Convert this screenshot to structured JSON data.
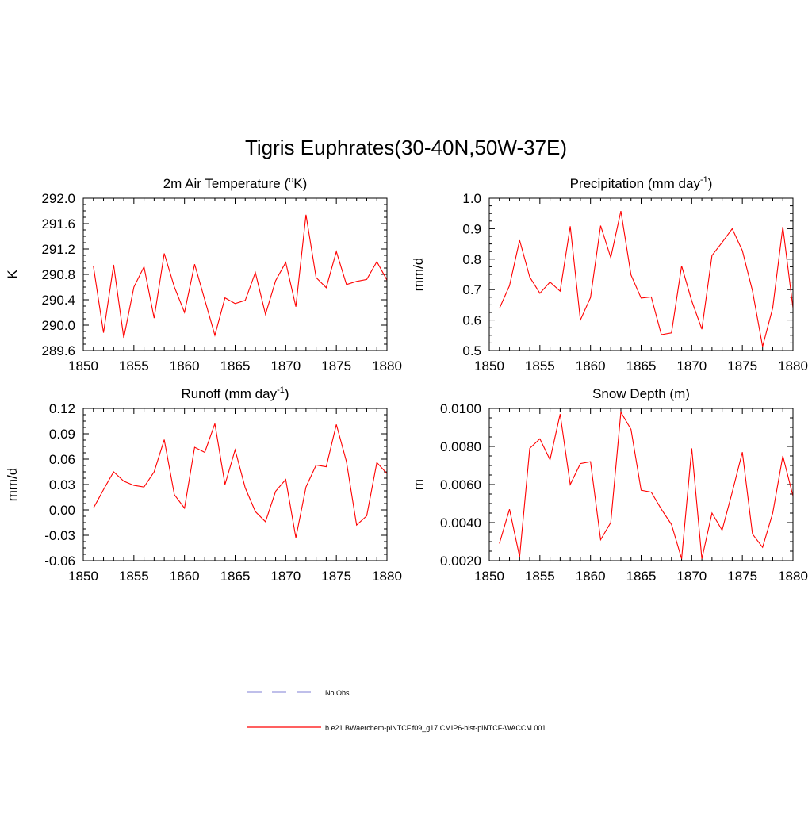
{
  "page": {
    "title": "Tigris Euphrates(30-40N,50W-37E)"
  },
  "colors": {
    "model_line": "#ff0000",
    "obs_line": "#9999dd",
    "axes": "#000000",
    "background": "#ffffff"
  },
  "legend": {
    "placement": "bottom",
    "items": [
      {
        "label": "No Obs",
        "style": "dashed",
        "color": "#9999dd"
      },
      {
        "label": "b.e21.BWaerchem-piNTCF.f09_g17.CMIP6-hist-piNTCF-WACCM.001",
        "style": "solid",
        "color": "#ff0000"
      }
    ]
  },
  "chart_data": [
    {
      "type": "line",
      "title_main": "2m Air Temperature (",
      "title_sup": "o",
      "title_end": "K)",
      "ylabel": "K",
      "xlim": [
        1850,
        1880
      ],
      "ylim": [
        289.6,
        292.0
      ],
      "xticks": [
        1850,
        1855,
        1860,
        1865,
        1870,
        1875,
        1880
      ],
      "yticks": [
        "289.6",
        "290.0",
        "290.4",
        "290.8",
        "291.2",
        "291.6",
        "292.0"
      ],
      "series": [
        {
          "x": [
            1851,
            1852,
            1853,
            1854,
            1855,
            1856,
            1857,
            1858,
            1859,
            1860,
            1861,
            1862,
            1863,
            1864,
            1865,
            1866,
            1867,
            1868,
            1869,
            1870,
            1871,
            1872,
            1873,
            1874,
            1875,
            1876,
            1877,
            1878,
            1879,
            1880
          ],
          "values": [
            290.93,
            289.88,
            290.95,
            289.8,
            290.6,
            290.92,
            290.11,
            291.13,
            290.6,
            290.2,
            290.96,
            290.4,
            289.84,
            290.43,
            290.34,
            290.39,
            290.83,
            290.17,
            290.7,
            290.99,
            290.29,
            291.74,
            290.75,
            290.59,
            291.16,
            290.64,
            290.69,
            290.72,
            291.0,
            290.71
          ]
        }
      ]
    },
    {
      "type": "line",
      "title_main": "Precipitation (mm day",
      "title_sup": "-1",
      "title_end": ")",
      "ylabel": "mm/d",
      "xlim": [
        1850,
        1880
      ],
      "ylim": [
        0.5,
        1.0
      ],
      "xticks": [
        1850,
        1855,
        1860,
        1865,
        1870,
        1875,
        1880
      ],
      "yticks": [
        "0.5",
        "0.6",
        "0.7",
        "0.8",
        "0.9",
        "1.0"
      ],
      "series": [
        {
          "x": [
            1851,
            1852,
            1853,
            1854,
            1855,
            1856,
            1857,
            1858,
            1859,
            1860,
            1861,
            1862,
            1863,
            1864,
            1865,
            1866,
            1867,
            1868,
            1869,
            1870,
            1871,
            1872,
            1873,
            1874,
            1875,
            1876,
            1877,
            1878,
            1879,
            1880
          ],
          "values": [
            0.638,
            0.713,
            0.862,
            0.741,
            0.688,
            0.725,
            0.695,
            0.908,
            0.6,
            0.674,
            0.91,
            0.805,
            0.958,
            0.748,
            0.672,
            0.676,
            0.552,
            0.558,
            0.778,
            0.663,
            0.57,
            0.812,
            0.855,
            0.9,
            0.828,
            0.696,
            0.513,
            0.64,
            0.906,
            0.64
          ]
        }
      ]
    },
    {
      "type": "line",
      "title_main": "Runoff (mm day",
      "title_sup": "-1",
      "title_end": ")",
      "ylabel": "mm/d",
      "xlim": [
        1850,
        1880
      ],
      "ylim": [
        -0.06,
        0.12
      ],
      "xticks": [
        1850,
        1855,
        1860,
        1865,
        1870,
        1875,
        1880
      ],
      "yticks": [
        "-0.06",
        "-0.03",
        "0.00",
        "0.03",
        "0.06",
        "0.09",
        "0.12"
      ],
      "series": [
        {
          "x": [
            1851,
            1852,
            1853,
            1854,
            1855,
            1856,
            1857,
            1858,
            1859,
            1860,
            1861,
            1862,
            1863,
            1864,
            1865,
            1866,
            1867,
            1868,
            1869,
            1870,
            1871,
            1872,
            1873,
            1874,
            1875,
            1876,
            1877,
            1878,
            1879,
            1880
          ],
          "values": [
            0.002,
            0.024,
            0.045,
            0.034,
            0.029,
            0.027,
            0.045,
            0.083,
            0.018,
            0.002,
            0.074,
            0.068,
            0.102,
            0.03,
            0.071,
            0.026,
            -0.002,
            -0.014,
            0.022,
            0.036,
            -0.033,
            0.027,
            0.053,
            0.051,
            0.101,
            0.057,
            -0.018,
            -0.007,
            0.056,
            0.043
          ]
        }
      ]
    },
    {
      "type": "line",
      "title_main": "Snow Depth (m)",
      "title_sup": "",
      "title_end": "",
      "ylabel": "m",
      "xlim": [
        1850,
        1880
      ],
      "ylim": [
        0.002,
        0.01
      ],
      "xticks": [
        1850,
        1855,
        1860,
        1865,
        1870,
        1875,
        1880
      ],
      "yticks": [
        "0.0020",
        "0.0040",
        "0.0060",
        "0.0080",
        "0.0100"
      ],
      "series": [
        {
          "x": [
            1851,
            1852,
            1853,
            1854,
            1855,
            1856,
            1857,
            1858,
            1859,
            1860,
            1861,
            1862,
            1863,
            1864,
            1865,
            1866,
            1867,
            1868,
            1869,
            1870,
            1871,
            1872,
            1873,
            1874,
            1875,
            1876,
            1877,
            1878,
            1879,
            1880
          ],
          "values": [
            0.0029,
            0.0047,
            0.0022,
            0.0079,
            0.0084,
            0.0073,
            0.0097,
            0.006,
            0.0071,
            0.0072,
            0.0031,
            0.004,
            0.0098,
            0.0089,
            0.0057,
            0.0056,
            0.0047,
            0.0039,
            0.0021,
            0.0079,
            0.0021,
            0.0045,
            0.0036,
            0.0056,
            0.0077,
            0.0034,
            0.0027,
            0.0045,
            0.0075,
            0.0054
          ]
        }
      ]
    }
  ]
}
